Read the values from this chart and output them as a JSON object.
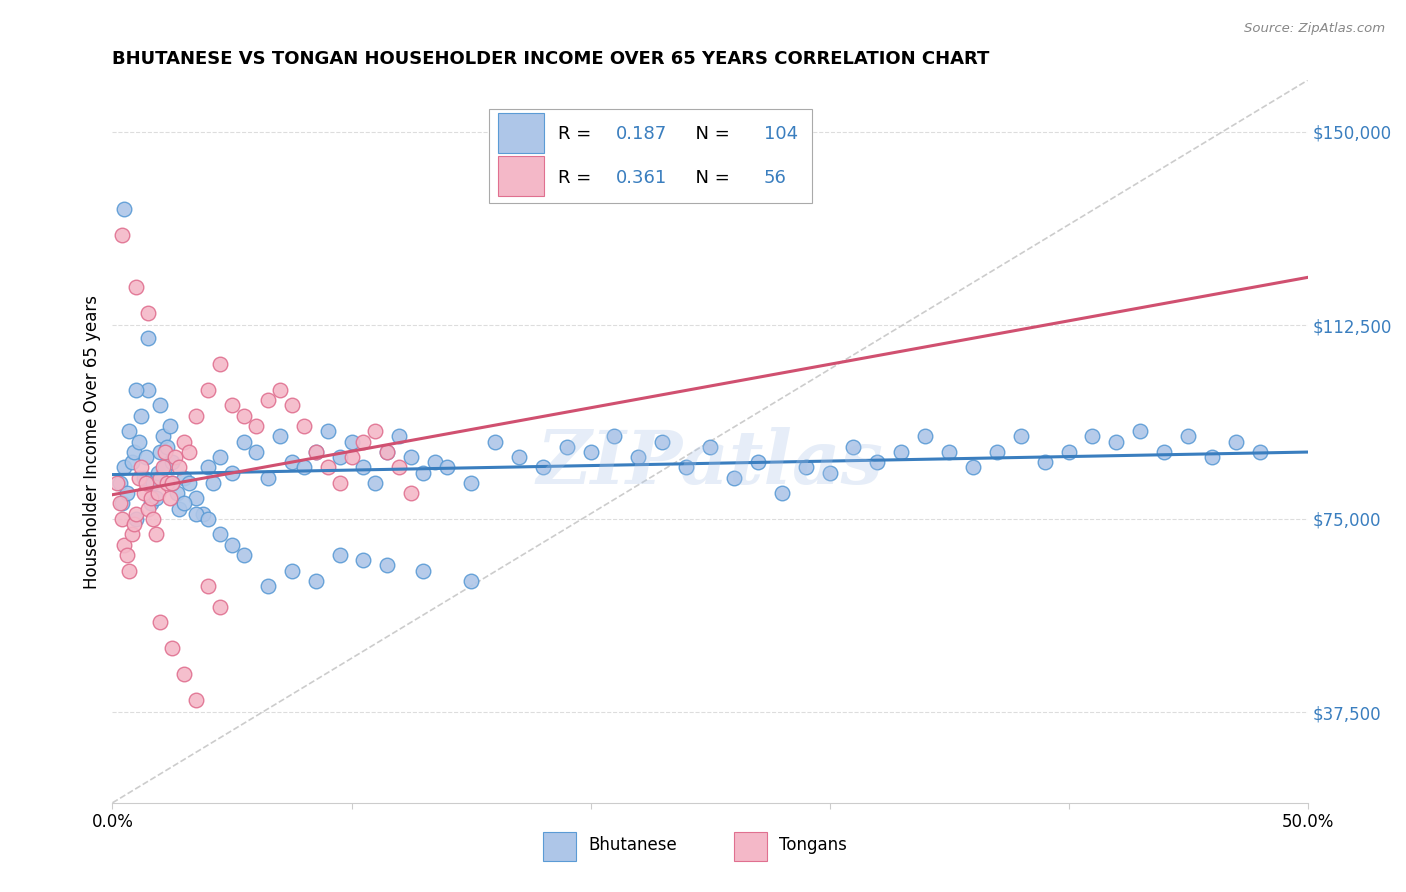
{
  "title": "BHUTANESE VS TONGAN HOUSEHOLDER INCOME OVER 65 YEARS CORRELATION CHART",
  "source": "Source: ZipAtlas.com",
  "ylabel": "Householder Income Over 65 years",
  "xlim": [
    0.0,
    50.0
  ],
  "ylim": [
    20000,
    160000
  ],
  "yticks": [
    37500,
    75000,
    112500,
    150000
  ],
  "ytick_labels": [
    "$37,500",
    "$75,000",
    "$112,500",
    "$150,000"
  ],
  "watermark": "ZIPatlas",
  "bhutanese_color": "#aec6e8",
  "tongan_color": "#f4b8c8",
  "bhutanese_edge": "#5b9bd5",
  "tongan_edge": "#e07090",
  "trendline_blue": "#3a7ebf",
  "trendline_pink": "#d05070",
  "trendline_dashed": "#c0c0c0",
  "label_color": "#3a7ebf",
  "R_bhutanese": 0.187,
  "N_bhutanese": 104,
  "R_tongan": 0.361,
  "N_tongan": 56,
  "bhutanese_x": [
    0.3,
    0.4,
    0.5,
    0.6,
    0.7,
    0.8,
    0.9,
    1.0,
    1.1,
    1.2,
    1.3,
    1.4,
    1.5,
    1.6,
    1.7,
    1.8,
    1.9,
    2.0,
    2.1,
    2.2,
    2.3,
    2.4,
    2.5,
    2.7,
    2.8,
    3.0,
    3.2,
    3.5,
    3.8,
    4.0,
    4.2,
    4.5,
    5.0,
    5.5,
    6.0,
    6.5,
    7.0,
    7.5,
    8.0,
    8.5,
    9.0,
    9.5,
    10.0,
    10.5,
    11.0,
    11.5,
    12.0,
    12.5,
    13.0,
    13.5,
    14.0,
    15.0,
    16.0,
    17.0,
    18.0,
    19.0,
    20.0,
    21.0,
    22.0,
    23.0,
    24.0,
    25.0,
    26.0,
    27.0,
    28.0,
    29.0,
    30.0,
    31.0,
    32.0,
    33.0,
    34.0,
    35.0,
    36.0,
    37.0,
    38.0,
    39.0,
    40.0,
    41.0,
    42.0,
    43.0,
    44.0,
    45.0,
    46.0,
    47.0,
    48.0,
    0.5,
    1.0,
    1.5,
    2.0,
    2.5,
    3.0,
    3.5,
    4.0,
    4.5,
    5.0,
    5.5,
    6.5,
    7.5,
    8.5,
    9.5,
    10.5,
    11.5,
    13.0,
    15.0
  ],
  "bhutanese_y": [
    82000,
    78000,
    85000,
    80000,
    92000,
    86000,
    88000,
    75000,
    90000,
    95000,
    83000,
    87000,
    100000,
    78000,
    82000,
    79000,
    84000,
    88000,
    91000,
    85000,
    89000,
    93000,
    86000,
    80000,
    77000,
    83000,
    82000,
    79000,
    76000,
    85000,
    82000,
    87000,
    84000,
    90000,
    88000,
    83000,
    91000,
    86000,
    85000,
    88000,
    92000,
    87000,
    90000,
    85000,
    82000,
    88000,
    91000,
    87000,
    84000,
    86000,
    85000,
    82000,
    90000,
    87000,
    85000,
    89000,
    88000,
    91000,
    87000,
    90000,
    85000,
    89000,
    83000,
    86000,
    80000,
    85000,
    84000,
    89000,
    86000,
    88000,
    91000,
    88000,
    85000,
    88000,
    91000,
    86000,
    88000,
    91000,
    90000,
    92000,
    88000,
    91000,
    87000,
    90000,
    88000,
    135000,
    100000,
    110000,
    97000,
    82000,
    78000,
    76000,
    75000,
    72000,
    70000,
    68000,
    62000,
    65000,
    63000,
    68000,
    67000,
    66000,
    65000,
    63000
  ],
  "tongan_x": [
    0.2,
    0.3,
    0.4,
    0.5,
    0.6,
    0.7,
    0.8,
    0.9,
    1.0,
    1.1,
    1.2,
    1.3,
    1.4,
    1.5,
    1.6,
    1.7,
    1.8,
    1.9,
    2.0,
    2.1,
    2.2,
    2.3,
    2.4,
    2.5,
    2.6,
    2.8,
    3.0,
    3.2,
    3.5,
    4.0,
    4.5,
    5.0,
    5.5,
    6.0,
    6.5,
    7.0,
    7.5,
    8.0,
    8.5,
    9.0,
    9.5,
    10.0,
    10.5,
    11.0,
    11.5,
    12.0,
    12.5,
    0.4,
    1.0,
    1.5,
    2.0,
    2.5,
    3.0,
    3.5,
    4.0,
    4.5
  ],
  "tongan_y": [
    82000,
    78000,
    75000,
    70000,
    68000,
    65000,
    72000,
    74000,
    76000,
    83000,
    85000,
    80000,
    82000,
    77000,
    79000,
    75000,
    72000,
    80000,
    83000,
    85000,
    88000,
    82000,
    79000,
    82000,
    87000,
    85000,
    90000,
    88000,
    95000,
    100000,
    105000,
    97000,
    95000,
    93000,
    98000,
    100000,
    97000,
    93000,
    88000,
    85000,
    82000,
    87000,
    90000,
    92000,
    88000,
    85000,
    80000,
    130000,
    120000,
    115000,
    55000,
    50000,
    45000,
    40000,
    62000,
    58000
  ]
}
